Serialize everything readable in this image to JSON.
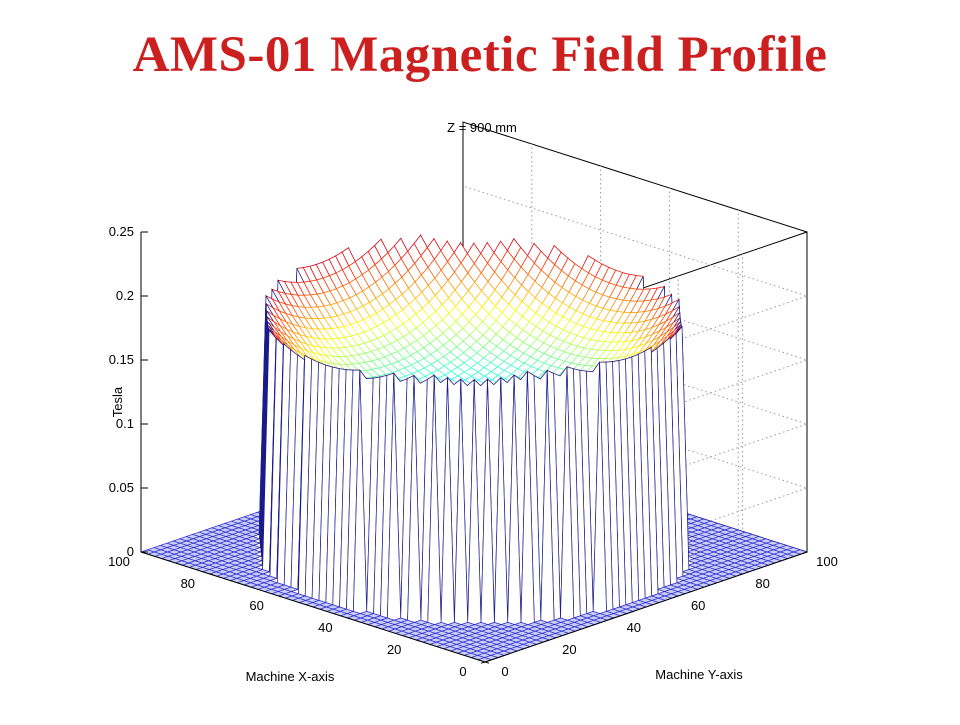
{
  "slide": {
    "title": "AMS-01 Magnetic Field Profile"
  },
  "chart_data": {
    "type": "surface",
    "title": "Z = 900 mm",
    "xlabel": "Machine X-axis",
    "ylabel": "Machine Y-axis",
    "zlabel": "Tesla",
    "xlim": [
      0,
      100
    ],
    "ylim": [
      0,
      100
    ],
    "zlim": [
      0,
      0.25
    ],
    "x_ticks": [
      "0",
      "20",
      "40",
      "60",
      "80",
      "100"
    ],
    "y_ticks": [
      "0",
      "20",
      "40",
      "60",
      "80",
      "100"
    ],
    "z_ticks": [
      "0",
      "0.05",
      "0.1",
      "0.15",
      "0.2",
      "0.25"
    ],
    "grid": true,
    "colormap": "jet",
    "surface": {
      "description_values": {
        "region": "circular bore centered at x=50, y=50 with radius 45; field is 0 outside",
        "field_at_center_T": 0.11,
        "field_at_bore_edge_T": 0.19,
        "edge_max_T": 0.21
      }
    },
    "colors": {
      "low": "#2b2bd6",
      "mid": "#40e0c0",
      "high": "#e8301c",
      "outline": "#1a1a8c",
      "grid": "#9a9a9a"
    }
  }
}
